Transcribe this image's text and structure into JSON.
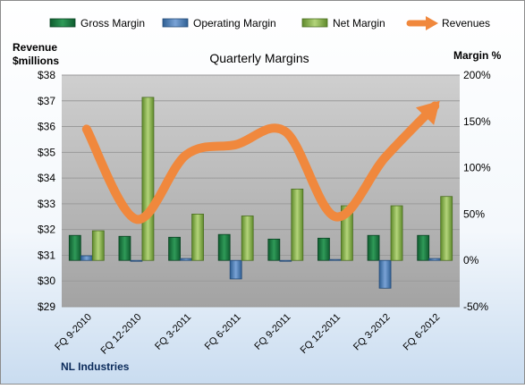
{
  "chart_data": {
    "type": "bar",
    "title": "Quarterly Margins",
    "footer": "NL Industries",
    "left_axis": {
      "label_line1": "Revenue",
      "label_line2": "$millions",
      "min": 29,
      "max": 38,
      "step": 1,
      "tick_labels": [
        "$29",
        "$30",
        "$31",
        "$32",
        "$33",
        "$34",
        "$35",
        "$36",
        "$37",
        "$38"
      ]
    },
    "right_axis": {
      "label": "Margin %",
      "min": -50,
      "max": 200,
      "step": 50,
      "tick_labels": [
        "-50%",
        "0%",
        "50%",
        "100%",
        "150%",
        "200%"
      ]
    },
    "categories": [
      "FQ 9-2010",
      "FQ 12-2010",
      "FQ 3-2011",
      "FQ 6-2011",
      "FQ 9-2011",
      "FQ 12-2011",
      "FQ 3-2012",
      "FQ 6-2012"
    ],
    "series": [
      {
        "name": "Gross Margin",
        "kind": "bar",
        "axis": "right",
        "color": "#1e7a45",
        "values": [
          27,
          26,
          25,
          28,
          23,
          24,
          27,
          27
        ]
      },
      {
        "name": "Operating Margin",
        "kind": "bar",
        "axis": "right",
        "color": "#4f81bd",
        "values": [
          5,
          0,
          2,
          -20,
          0,
          1,
          -30,
          2
        ]
      },
      {
        "name": "Net Margin",
        "kind": "bar",
        "axis": "right",
        "color": "#8db352",
        "values": [
          32,
          176,
          50,
          48,
          77,
          59,
          59,
          69
        ]
      },
      {
        "name": "Revenues",
        "kind": "line",
        "axis": "left",
        "color": "#f0883d",
        "values": [
          35.9,
          32.4,
          34.9,
          35.3,
          35.8,
          32.5,
          34.8,
          36.8
        ]
      }
    ],
    "legend_position": "top",
    "grid": true
  }
}
